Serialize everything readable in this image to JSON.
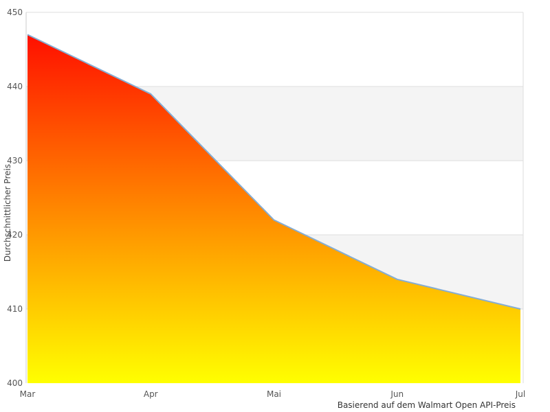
{
  "chart_data": {
    "type": "area",
    "categories": [
      "Mar",
      "Apr",
      "Mai",
      "Jun",
      "Jul"
    ],
    "values": [
      447,
      439,
      422,
      414,
      410
    ],
    "title": "",
    "xlabel": "",
    "ylabel": "Durchschnittlicher Preis",
    "caption": "Basierend auf dem Walmart Open API-Preis",
    "ylim": [
      400,
      450
    ],
    "yticks": [
      400,
      410,
      420,
      430,
      440,
      450
    ],
    "grid": "horizontal gridlines every 10 with alternating gray bands",
    "legend_position": "none",
    "colors": {
      "area_gradient_top": "#ff0000",
      "area_gradient_bottom": "#ffff00",
      "line": "#85add3",
      "band_gray": "#f4f4f4",
      "gridline": "#dedede",
      "axis_line": "#cccccc",
      "tick_text": "#555555",
      "caption_text": "#333333"
    }
  }
}
